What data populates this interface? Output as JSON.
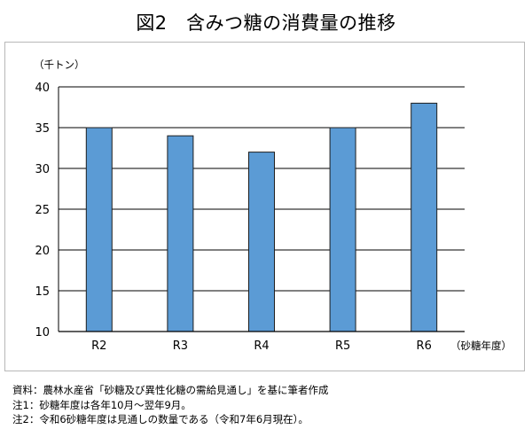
{
  "chart_data": {
    "type": "bar",
    "title": "図2　含みつ糖の消費量の推移",
    "ylabel": "（千トン）",
    "xlabel": "（砂糖年度）",
    "categories": [
      "R2",
      "R3",
      "R4",
      "R5",
      "R6"
    ],
    "values": [
      35,
      34,
      32,
      35,
      38
    ],
    "ylim": [
      10,
      40
    ],
    "yticks": [
      10,
      15,
      20,
      25,
      30,
      35,
      40
    ],
    "ytick_labels": [
      "10",
      "15",
      "20",
      "25",
      "30",
      "35",
      "40"
    ],
    "grid": true,
    "bar_color": "#5b9bd5",
    "bar_edge_color": "#1f1f1f"
  },
  "notes": [
    "資料：農林水産省「砂糖及び異性化糖の需給見通し」を基に筆者作成",
    "注1：砂糖年度は各年10月～翌年9月。",
    "注2：令和6砂糖年度は見通しの数量である（令和7年6月現在）。"
  ]
}
